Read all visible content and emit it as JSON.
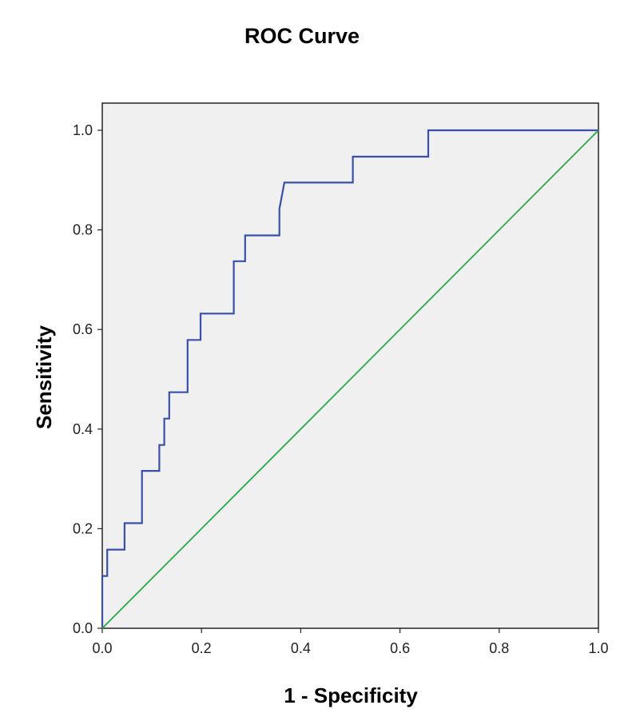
{
  "chart_data": {
    "type": "line",
    "title": "ROC Curve",
    "xlabel": "1 - Specificity",
    "ylabel": "Sensitivity",
    "xlim": [
      0,
      1
    ],
    "ylim": [
      0,
      1
    ],
    "x_ticks": [
      "0.0",
      "0.2",
      "0.4",
      "0.6",
      "0.8",
      "1.0"
    ],
    "y_ticks": [
      "0.0",
      "0.2",
      "0.4",
      "0.6",
      "0.8",
      "1.0"
    ],
    "grid": false,
    "legend": "none",
    "series": [
      {
        "color": "#3a4fa8",
        "x": [
          0,
          0,
          0.01,
          0.01,
          0.045,
          0.045,
          0.08,
          0.08,
          0.115,
          0.115,
          0.125,
          0.125,
          0.135,
          0.135,
          0.172,
          0.172,
          0.198,
          0.198,
          0.265,
          0.265,
          0.288,
          0.288,
          0.357,
          0.357,
          0.367,
          0.367,
          0.505,
          0.505,
          0.657,
          0.657,
          1.0
        ],
        "y": [
          0,
          0.105,
          0.105,
          0.158,
          0.158,
          0.211,
          0.211,
          0.316,
          0.316,
          0.368,
          0.368,
          0.421,
          0.421,
          0.474,
          0.474,
          0.579,
          0.579,
          0.632,
          0.632,
          0.737,
          0.737,
          0.789,
          0.789,
          0.842,
          0.895,
          0.895,
          0.895,
          0.947,
          0.947,
          1.0,
          1.0
        ]
      },
      {
        "color": "#2aa84a",
        "x": [
          0,
          1
        ],
        "y": [
          0,
          1
        ]
      }
    ]
  }
}
